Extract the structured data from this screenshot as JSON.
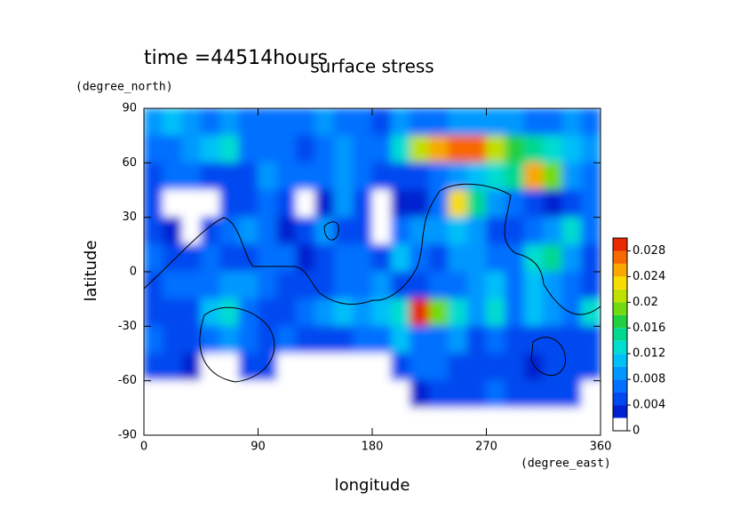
{
  "chart_data": {
    "type": "contourf",
    "title": "surface stress",
    "subtitle": "time =44514hours",
    "xlabel": "longitude",
    "ylabel": "latitude",
    "xunit": "(degree_east)",
    "yunit": "(degree_north)",
    "x": [
      7.5,
      22.5,
      37.5,
      52.5,
      67.5,
      82.5,
      97.5,
      112.5,
      127.5,
      142.5,
      157.5,
      172.5,
      187.5,
      202.5,
      217.5,
      232.5,
      247.5,
      262.5,
      277.5,
      292.5,
      307.5,
      322.5,
      337.5,
      352.5
    ],
    "y": [
      82.5,
      67.5,
      52.5,
      37.5,
      22.5,
      7.5,
      -7.5,
      -22.5,
      -37.5,
      -52.5,
      -67.5,
      -82.5
    ],
    "values": [
      [
        0.008,
        0.01,
        0.008,
        0.006,
        0.008,
        0.006,
        0.006,
        0.006,
        0.006,
        0.008,
        0.006,
        0.006,
        0.004,
        0.008,
        0.006,
        0.006,
        0.008,
        0.008,
        0.008,
        0.008,
        0.006,
        0.006,
        0.008,
        0.006
      ],
      [
        0.006,
        0.006,
        0.008,
        0.01,
        0.012,
        0.006,
        0.006,
        0.006,
        0.004,
        0.006,
        0.008,
        0.006,
        0.006,
        0.012,
        0.02,
        0.024,
        0.026,
        0.026,
        0.02,
        0.016,
        0.014,
        0.012,
        0.01,
        0.008
      ],
      [
        0.004,
        0.006,
        0.006,
        0.004,
        0.004,
        0.004,
        0.008,
        0.006,
        0.006,
        0.006,
        0.008,
        0.006,
        0.004,
        0.004,
        0.004,
        0.006,
        0.008,
        0.01,
        0.012,
        0.014,
        0.024,
        0.018,
        0.008,
        0.006
      ],
      [
        0.004,
        0,
        0,
        0,
        0.004,
        0.004,
        0.006,
        0.004,
        0,
        0.002,
        0.008,
        0.004,
        0,
        0.002,
        0.002,
        0.006,
        0.022,
        0.014,
        0.008,
        0.006,
        0.004,
        0.002,
        0.004,
        0.006
      ],
      [
        0.004,
        0.002,
        0,
        0.004,
        0.006,
        0.008,
        0.006,
        0.002,
        0.004,
        0.008,
        0.004,
        0.004,
        0,
        0.006,
        0.008,
        0.008,
        0.01,
        0.008,
        0.004,
        0.004,
        0.006,
        0.008,
        0.012,
        0.006
      ],
      [
        0.006,
        0.004,
        0.004,
        0.006,
        0.004,
        0.004,
        0.006,
        0.006,
        0.002,
        0.004,
        0.006,
        0.006,
        0.004,
        0.01,
        0.006,
        0.004,
        0.008,
        0.008,
        0.006,
        0.006,
        0.012,
        0.014,
        0.008,
        0.004
      ],
      [
        0.004,
        0.006,
        0.006,
        0.006,
        0.008,
        0.008,
        0.006,
        0.004,
        0.004,
        0.004,
        0.006,
        0.006,
        0.008,
        0.004,
        0.004,
        0.006,
        0.006,
        0.008,
        0.01,
        0.006,
        0.01,
        0.008,
        0.006,
        0.004
      ],
      [
        0.004,
        0.004,
        0.004,
        0.01,
        0.012,
        0.006,
        0.004,
        0.004,
        0.006,
        0.008,
        0.01,
        0.008,
        0.01,
        0.012,
        0.028,
        0.018,
        0.012,
        0.008,
        0.012,
        0.006,
        0.01,
        0.008,
        0.006,
        0.012
      ],
      [
        0.006,
        0.004,
        0.004,
        0.006,
        0.008,
        0.006,
        0.004,
        0.006,
        0.004,
        0.004,
        0.004,
        0.006,
        0.006,
        0.01,
        0.006,
        0.006,
        0.008,
        0.004,
        0.006,
        0.004,
        0.004,
        0.004,
        0.004,
        0.004
      ],
      [
        0.004,
        0.004,
        0.002,
        0,
        0,
        0.004,
        0.004,
        0,
        0,
        0,
        0,
        0,
        0,
        0.004,
        0.006,
        0.006,
        0.004,
        0.004,
        0.004,
        0.004,
        0.002,
        0.004,
        0.004,
        0.004
      ],
      [
        0,
        0,
        0,
        0,
        0,
        0,
        0,
        0,
        0,
        0,
        0,
        0,
        0,
        0,
        0.002,
        0.004,
        0.004,
        0.004,
        0.006,
        0.004,
        0.004,
        0.004,
        0.004,
        0
      ],
      [
        0,
        0,
        0,
        0,
        0,
        0,
        0,
        0,
        0,
        0,
        0,
        0,
        0,
        0,
        0,
        0,
        0,
        0,
        0,
        0,
        0,
        0,
        0,
        0
      ]
    ],
    "xlim": [
      0,
      360
    ],
    "ylim": [
      -90,
      90
    ],
    "xticks": [
      0,
      90,
      180,
      270,
      360
    ],
    "yticks": [
      -90,
      -60,
      -30,
      0,
      30,
      60,
      90
    ],
    "levels": [
      0,
      0.002,
      0.004,
      0.006,
      0.008,
      0.01,
      0.012,
      0.014,
      0.016,
      0.018,
      0.02,
      0.022,
      0.024,
      0.026,
      0.028,
      0.03
    ],
    "colors": [
      "#ffffff",
      "#0022d0",
      "#0048f0",
      "#0070ff",
      "#0098ff",
      "#00c0f8",
      "#00dcd0",
      "#00d890",
      "#20d040",
      "#70dc10",
      "#c0e000",
      "#f8dc00",
      "#f8a800",
      "#f86800",
      "#e82800"
    ],
    "cticks": [
      0,
      0.004,
      0.008,
      0.012,
      0.016,
      0.02,
      0.024,
      0.028
    ]
  }
}
